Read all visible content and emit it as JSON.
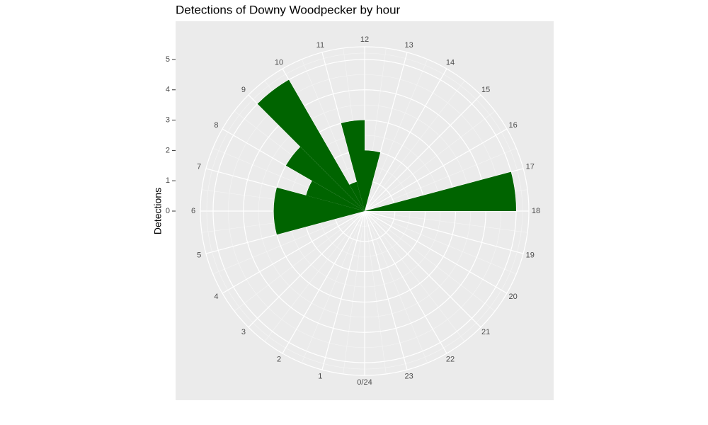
{
  "chart_data": {
    "type": "histogram",
    "polar": true,
    "title": "Detections of Downy Woodpecker by hour",
    "y_label": "Detections",
    "bins": [
      0,
      1,
      2,
      3,
      4,
      5,
      6,
      7,
      8,
      9,
      10,
      11,
      12,
      13,
      14,
      15,
      16,
      17,
      18,
      19,
      20,
      21,
      22,
      23,
      24
    ],
    "values": [
      0,
      0,
      0,
      0,
      0,
      3,
      3,
      2,
      3,
      5,
      1,
      3,
      2,
      0,
      0,
      0,
      0,
      5,
      0,
      0,
      0,
      0,
      0,
      0
    ],
    "color": "#006400",
    "xlim": [
      0,
      24
    ],
    "xticks": [
      {
        "value": 0,
        "label": "0/24"
      },
      1,
      2,
      3,
      4,
      5,
      6,
      7,
      8,
      9,
      10,
      11,
      12,
      13,
      14,
      15,
      16,
      17,
      18,
      19,
      20,
      21,
      22,
      23
    ],
    "ylim": [
      0,
      5.42
    ],
    "yticks": [
      0,
      1,
      2,
      3,
      4,
      5
    ],
    "grid": true
  }
}
